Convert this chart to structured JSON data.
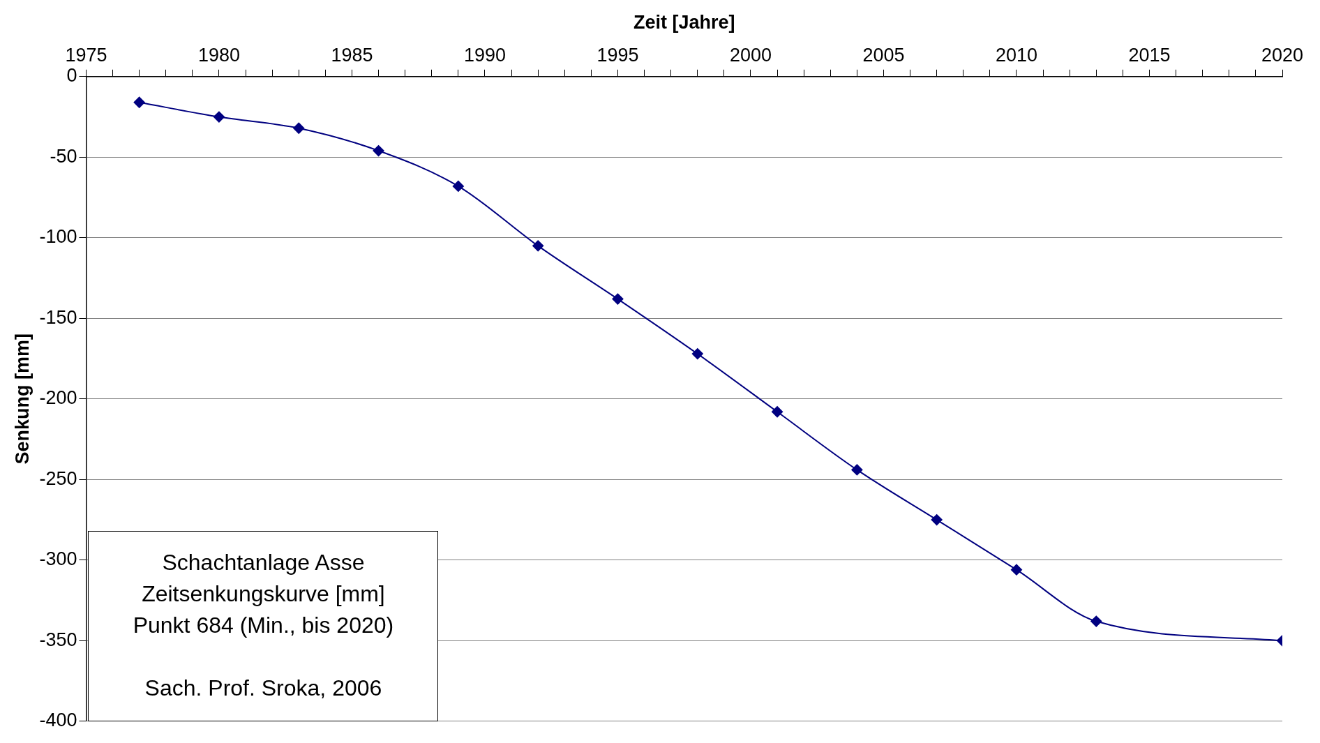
{
  "chart_data": {
    "type": "line",
    "xlabel": "Zeit [Jahre]",
    "ylabel": "Senkung [mm]",
    "x": [
      1977,
      1980,
      1983,
      1986,
      1989,
      1992,
      1995,
      1998,
      2001,
      2004,
      2007,
      2010,
      2013,
      2020
    ],
    "series": [
      {
        "color": "#000080",
        "values": [
          -16,
          -25,
          -32,
          -46,
          -68,
          -105,
          -138,
          -172,
          -208,
          -244,
          -275,
          -306,
          -338,
          -350
        ]
      }
    ],
    "xlim": [
      1975,
      2020
    ],
    "xticks": [
      1975,
      {
        "value": 1976,
        "label": null
      },
      {
        "value": 1977,
        "label": null
      },
      {
        "value": 1978,
        "label": null
      },
      {
        "value": 1979,
        "label": null
      },
      1980,
      {
        "value": 1981,
        "label": null
      },
      {
        "value": 1982,
        "label": null
      },
      {
        "value": 1983,
        "label": null
      },
      {
        "value": 1984,
        "label": null
      },
      1985,
      {
        "value": 1986,
        "label": null
      },
      {
        "value": 1987,
        "label": null
      },
      {
        "value": 1988,
        "label": null
      },
      {
        "value": 1989,
        "label": null
      },
      1990,
      {
        "value": 1991,
        "label": null
      },
      {
        "value": 1992,
        "label": null
      },
      {
        "value": 1993,
        "label": null
      },
      {
        "value": 1994,
        "label": null
      },
      1995,
      {
        "value": 1996,
        "label": null
      },
      {
        "value": 1997,
        "label": null
      },
      {
        "value": 1998,
        "label": null
      },
      {
        "value": 1999,
        "label": null
      },
      2000,
      {
        "value": 2001,
        "label": null
      },
      {
        "value": 2002,
        "label": null
      },
      {
        "value": 2003,
        "label": null
      },
      {
        "value": 2004,
        "label": null
      },
      2005,
      {
        "value": 2006,
        "label": null
      },
      {
        "value": 2007,
        "label": null
      },
      {
        "value": 2008,
        "label": null
      },
      {
        "value": 2009,
        "label": null
      },
      2010,
      {
        "value": 2011,
        "label": null
      },
      {
        "value": 2012,
        "label": null
      },
      {
        "value": 2013,
        "label": null
      },
      {
        "value": 2014,
        "label": null
      },
      2015,
      {
        "value": 2016,
        "label": null
      },
      {
        "value": 2017,
        "label": null
      },
      {
        "value": 2018,
        "label": null
      },
      {
        "value": 2019,
        "label": null
      },
      2020
    ],
    "ylim": [
      -400,
      0
    ],
    "yticks": [
      0,
      -50,
      -100,
      -150,
      -200,
      -250,
      -300,
      -350,
      -400
    ],
    "grid": "y",
    "legend": false,
    "marker": "diamond",
    "line_style": "solid",
    "annotations": [
      "Schachtanlage Asse",
      "Zeitsenkungskurve [mm]",
      "Punkt 684 (Min., bis 2020)",
      "Sach. Prof. Sroka, 2006"
    ]
  }
}
